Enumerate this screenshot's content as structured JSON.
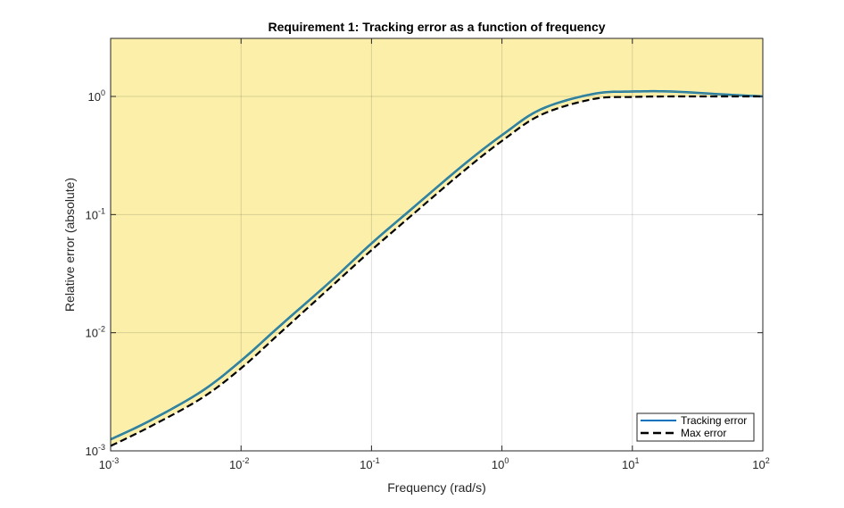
{
  "chart_data": {
    "type": "line",
    "title": "Requirement 1: Tracking error as a function of frequency",
    "xlabel": "Frequency (rad/s)",
    "ylabel": "Relative error (absolute)",
    "xscale": "log",
    "yscale": "log",
    "xlim": [
      0.001,
      100
    ],
    "ylim": [
      0.001,
      3.1
    ],
    "grid": true,
    "legend_position": "bottom-right",
    "x_ticks": [
      {
        "value": 0.001,
        "base": "10",
        "exp": "-3"
      },
      {
        "value": 0.01,
        "base": "10",
        "exp": "-2"
      },
      {
        "value": 0.1,
        "base": "10",
        "exp": "-1"
      },
      {
        "value": 1,
        "base": "10",
        "exp": "0"
      },
      {
        "value": 10,
        "base": "10",
        "exp": "1"
      },
      {
        "value": 100,
        "base": "10",
        "exp": "2"
      }
    ],
    "y_ticks": [
      {
        "value": 0.001,
        "base": "10",
        "exp": "-3"
      },
      {
        "value": 0.01,
        "base": "10",
        "exp": "-2"
      },
      {
        "value": 0.1,
        "base": "10",
        "exp": "-1"
      },
      {
        "value": 1,
        "base": "10",
        "exp": "0"
      }
    ],
    "x": [
      0.001,
      0.002,
      0.005,
      0.01,
      0.02,
      0.05,
      0.1,
      0.2,
      0.5,
      1,
      2,
      5,
      10,
      20,
      50,
      100
    ],
    "series": [
      {
        "name": "Tracking error",
        "color": "#0072bd",
        "style": "solid",
        "values": [
          0.00125,
          0.0018,
          0.0032,
          0.0058,
          0.0115,
          0.028,
          0.057,
          0.11,
          0.26,
          0.47,
          0.78,
          1.05,
          1.1,
          1.1,
          1.04,
          1.0
        ]
      },
      {
        "name": "Max error",
        "color": "#000000",
        "style": "dashed",
        "values": [
          0.0011,
          0.0016,
          0.0028,
          0.005,
          0.01,
          0.025,
          0.05,
          0.097,
          0.23,
          0.42,
          0.7,
          0.95,
          0.99,
          1.0,
          1.0,
          1.0
        ]
      }
    ],
    "shaded_region": {
      "description": "infeasible region above Max error",
      "color": "#fbefa9",
      "bound_series": "Max error"
    }
  }
}
